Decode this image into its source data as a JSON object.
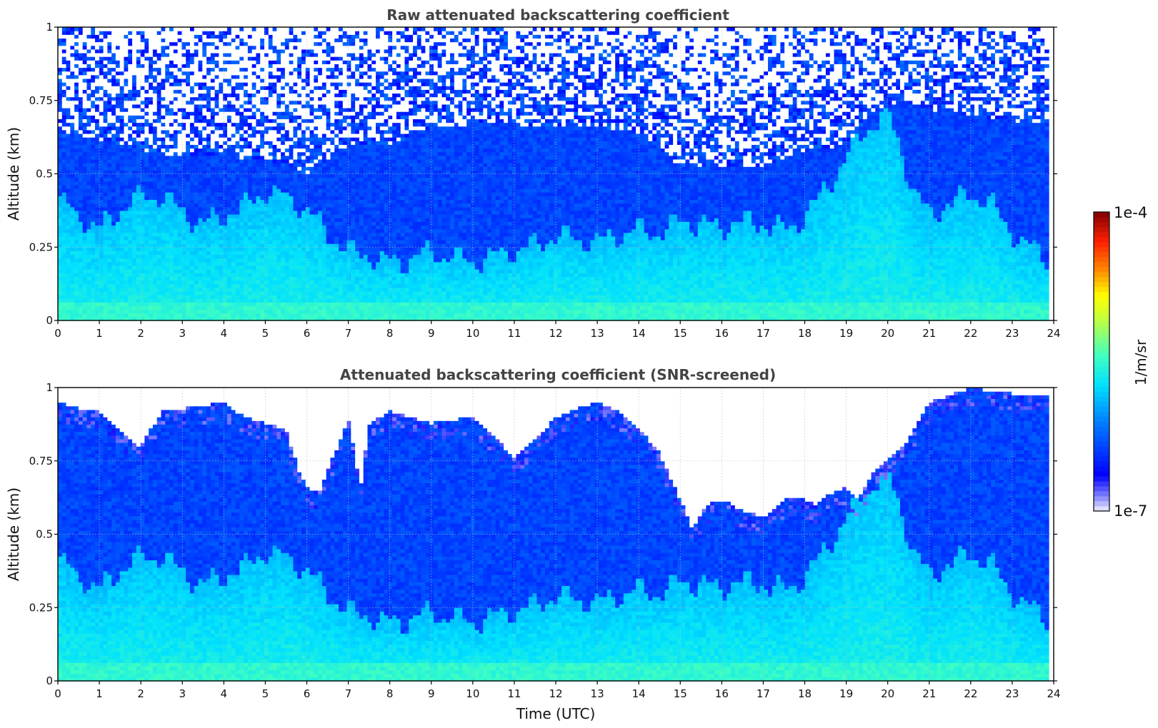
{
  "chart_data": [
    {
      "type": "heatmap",
      "title": "Raw attenuated backscattering coefficient",
      "xlabel": "",
      "ylabel": "Altitude (km)",
      "xlim": [
        0,
        24
      ],
      "ylim": [
        0,
        1
      ],
      "x_ticks": [
        "0",
        "1",
        "2",
        "3",
        "4",
        "5",
        "6",
        "7",
        "8",
        "9",
        "10",
        "11",
        "12",
        "13",
        "14",
        "15",
        "16",
        "17",
        "18",
        "19",
        "20",
        "21",
        "22",
        "23",
        "24"
      ],
      "y_ticks": [
        "0",
        "0.25",
        "0.5",
        "0.75",
        "1"
      ],
      "grid": true,
      "screened": false,
      "data_end_hour": 23.88,
      "boundary_layer_top_km": [
        [
          0,
          0.41
        ],
        [
          0.5,
          0.36
        ],
        [
          1,
          0.31
        ],
        [
          1.5,
          0.38
        ],
        [
          2,
          0.42
        ],
        [
          2.5,
          0.43
        ],
        [
          3,
          0.37
        ],
        [
          3.5,
          0.33
        ],
        [
          4,
          0.36
        ],
        [
          4.5,
          0.39
        ],
        [
          5,
          0.44
        ],
        [
          5.5,
          0.42
        ],
        [
          6,
          0.38
        ],
        [
          6.5,
          0.3
        ],
        [
          7,
          0.24
        ],
        [
          7.5,
          0.22
        ],
        [
          8,
          0.2
        ],
        [
          8.5,
          0.21
        ],
        [
          9,
          0.23
        ],
        [
          9.5,
          0.22
        ],
        [
          10,
          0.2
        ],
        [
          10.5,
          0.22
        ],
        [
          11,
          0.24
        ],
        [
          11.5,
          0.26
        ],
        [
          12,
          0.29
        ],
        [
          12.5,
          0.28
        ],
        [
          13,
          0.27
        ],
        [
          13.5,
          0.29
        ],
        [
          14,
          0.31
        ],
        [
          14.5,
          0.3
        ],
        [
          15,
          0.34
        ],
        [
          15.5,
          0.33
        ],
        [
          16,
          0.32
        ],
        [
          16.5,
          0.34
        ],
        [
          17,
          0.33
        ],
        [
          17.5,
          0.31
        ],
        [
          18,
          0.35
        ],
        [
          18.5,
          0.45
        ],
        [
          19,
          0.55
        ],
        [
          19.5,
          0.66
        ],
        [
          20,
          0.71
        ],
        [
          20.3,
          0.6
        ],
        [
          20.6,
          0.45
        ],
        [
          21,
          0.36
        ],
        [
          21.5,
          0.4
        ],
        [
          22,
          0.43
        ],
        [
          22.5,
          0.4
        ],
        [
          23,
          0.3
        ],
        [
          23.5,
          0.24
        ],
        [
          23.9,
          0.22
        ]
      ],
      "noise_onset_km": [
        [
          0,
          0.62
        ],
        [
          1,
          0.62
        ],
        [
          2,
          0.58
        ],
        [
          3,
          0.56
        ],
        [
          4,
          0.56
        ],
        [
          5,
          0.55
        ],
        [
          6,
          0.5
        ],
        [
          7,
          0.6
        ],
        [
          8,
          0.6
        ],
        [
          9,
          0.66
        ],
        [
          10,
          0.67
        ],
        [
          11,
          0.67
        ],
        [
          12,
          0.66
        ],
        [
          13,
          0.66
        ],
        [
          14,
          0.64
        ],
        [
          15,
          0.53
        ],
        [
          16,
          0.52
        ],
        [
          17,
          0.53
        ],
        [
          18,
          0.58
        ],
        [
          19,
          0.6
        ],
        [
          19.7,
          0.72
        ],
        [
          20.5,
          0.74
        ],
        [
          21,
          0.72
        ],
        [
          22,
          0.7
        ],
        [
          23,
          0.68
        ],
        [
          23.9,
          0.68
        ]
      ]
    },
    {
      "type": "heatmap",
      "title": "Attenuated backscattering coefficient (SNR-screened)",
      "xlabel": "Time (UTC)",
      "ylabel": "Altitude (km)",
      "xlim": [
        0,
        24
      ],
      "ylim": [
        0,
        1
      ],
      "x_ticks": [
        "0",
        "1",
        "2",
        "3",
        "4",
        "5",
        "6",
        "7",
        "8",
        "9",
        "10",
        "11",
        "12",
        "13",
        "14",
        "15",
        "16",
        "17",
        "18",
        "19",
        "20",
        "21",
        "22",
        "23",
        "24"
      ],
      "y_ticks": [
        "0",
        "0.25",
        "0.5",
        "0.75",
        "1"
      ],
      "grid": true,
      "screened": true,
      "data_end_hour": 23.88,
      "screen_edge_km": [
        [
          0,
          0.95
        ],
        [
          0.5,
          0.93
        ],
        [
          1,
          0.92
        ],
        [
          1.5,
          0.85
        ],
        [
          2,
          0.8
        ],
        [
          2.5,
          0.92
        ],
        [
          3,
          0.93
        ],
        [
          3.5,
          0.94
        ],
        [
          4,
          0.95
        ],
        [
          4.5,
          0.9
        ],
        [
          5,
          0.88
        ],
        [
          5.5,
          0.86
        ],
        [
          5.8,
          0.72
        ],
        [
          6,
          0.66
        ],
        [
          6.3,
          0.64
        ],
        [
          6.6,
          0.75
        ],
        [
          7,
          0.9
        ],
        [
          7.3,
          0.66
        ],
        [
          7.5,
          0.88
        ],
        [
          8,
          0.92
        ],
        [
          9,
          0.88
        ],
        [
          10,
          0.9
        ],
        [
          10.5,
          0.84
        ],
        [
          11,
          0.76
        ],
        [
          11.5,
          0.82
        ],
        [
          12,
          0.9
        ],
        [
          12.5,
          0.93
        ],
        [
          13,
          0.95
        ],
        [
          13.5,
          0.92
        ],
        [
          14,
          0.86
        ],
        [
          14.5,
          0.78
        ],
        [
          15,
          0.62
        ],
        [
          15.3,
          0.52
        ],
        [
          15.6,
          0.6
        ],
        [
          16,
          0.62
        ],
        [
          16.5,
          0.58
        ],
        [
          17,
          0.56
        ],
        [
          17.5,
          0.62
        ],
        [
          18,
          0.62
        ],
        [
          18.3,
          0.6
        ],
        [
          18.6,
          0.64
        ],
        [
          19,
          0.66
        ],
        [
          19.3,
          0.62
        ],
        [
          19.6,
          0.7
        ],
        [
          20,
          0.76
        ],
        [
          20.5,
          0.82
        ],
        [
          21,
          0.95
        ],
        [
          22,
          1.0
        ],
        [
          23,
          0.98
        ],
        [
          23.9,
          0.97
        ]
      ],
      "boundary_layer_top_km": [
        [
          0,
          0.41
        ],
        [
          0.5,
          0.36
        ],
        [
          1,
          0.31
        ],
        [
          1.5,
          0.38
        ],
        [
          2,
          0.42
        ],
        [
          2.5,
          0.43
        ],
        [
          3,
          0.37
        ],
        [
          3.5,
          0.33
        ],
        [
          4,
          0.36
        ],
        [
          4.5,
          0.39
        ],
        [
          5,
          0.44
        ],
        [
          5.5,
          0.42
        ],
        [
          6,
          0.38
        ],
        [
          6.5,
          0.3
        ],
        [
          7,
          0.24
        ],
        [
          7.5,
          0.22
        ],
        [
          8,
          0.2
        ],
        [
          8.5,
          0.21
        ],
        [
          9,
          0.23
        ],
        [
          9.5,
          0.22
        ],
        [
          10,
          0.2
        ],
        [
          10.5,
          0.22
        ],
        [
          11,
          0.24
        ],
        [
          11.5,
          0.26
        ],
        [
          12,
          0.29
        ],
        [
          12.5,
          0.28
        ],
        [
          13,
          0.27
        ],
        [
          13.5,
          0.29
        ],
        [
          14,
          0.31
        ],
        [
          14.5,
          0.3
        ],
        [
          15,
          0.34
        ],
        [
          15.5,
          0.33
        ],
        [
          16,
          0.32
        ],
        [
          16.5,
          0.34
        ],
        [
          17,
          0.33
        ],
        [
          17.5,
          0.31
        ],
        [
          18,
          0.35
        ],
        [
          18.5,
          0.45
        ],
        [
          19,
          0.55
        ],
        [
          19.5,
          0.66
        ],
        [
          20,
          0.71
        ],
        [
          20.3,
          0.6
        ],
        [
          20.6,
          0.45
        ],
        [
          21,
          0.36
        ],
        [
          21.5,
          0.4
        ],
        [
          22,
          0.43
        ],
        [
          22.5,
          0.4
        ],
        [
          23,
          0.3
        ],
        [
          23.5,
          0.24
        ],
        [
          23.9,
          0.22
        ]
      ]
    }
  ],
  "colorbar": {
    "max_label": "1e-4",
    "min_label": "1e-7",
    "unit_label": "1/m/sr",
    "scale": "log",
    "colormap": "jet",
    "range": [
      1e-07,
      0.0001
    ]
  }
}
